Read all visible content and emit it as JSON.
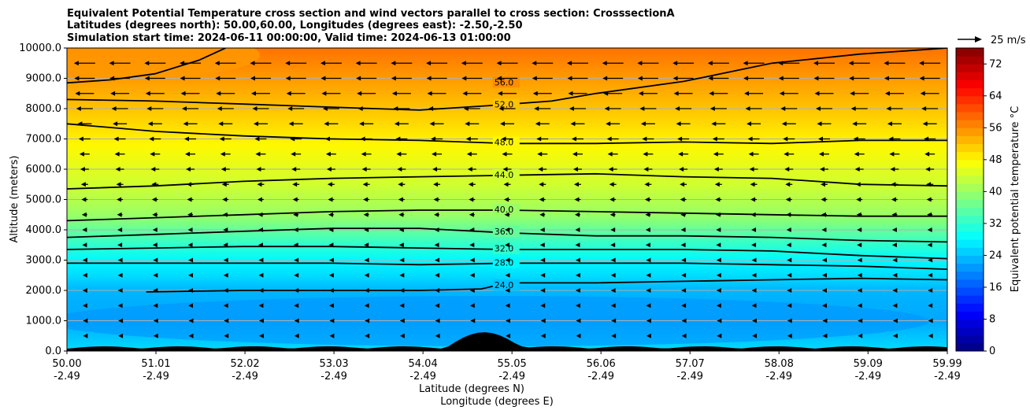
{
  "chart_data": {
    "type": "heatmap",
    "title_lines": [
      "Equivalent Potential Temperature cross section and wind vectors parallel to cross section: CrosssectionA",
      "Latitudes (degrees north): 50.00,60.00, Longitudes (degrees east): -2.50,-2.50",
      "Simulation start time: 2024-06-11 00:00:00, Valid time: 2024-06-13 01:00:00"
    ],
    "xlabel_line1": "Latitude (degrees N)",
    "xlabel_line2": "Longitude (degrees E)",
    "ylabel": "Altitude (meters)",
    "x_tick_labels_lat": [
      "50.00",
      "51.01",
      "52.02",
      "53.03",
      "54.04",
      "55.05",
      "56.06",
      "57.07",
      "58.08",
      "59.09",
      "59.99"
    ],
    "x_tick_labels_lon": [
      "-2.49",
      "-2.49",
      "-2.49",
      "-2.49",
      "-2.49",
      "-2.49",
      "-2.49",
      "-2.49",
      "-2.49",
      "-2.49",
      "-2.49"
    ],
    "y_ticks": [
      0,
      1000,
      2000,
      3000,
      4000,
      5000,
      6000,
      7000,
      8000,
      9000,
      10000
    ],
    "y_tick_labels": [
      "0.0",
      "1000.0",
      "2000.0",
      "3000.0",
      "4000.0",
      "5000.0",
      "6000.0",
      "7000.0",
      "8000.0",
      "9000.0",
      "10000.0"
    ],
    "x_range": [
      50.0,
      59.99
    ],
    "y_range": [
      0,
      10000
    ],
    "grid": true,
    "colorbar": {
      "label": "Equivalent potential temperature °C",
      "range": [
        0,
        76
      ],
      "ticks": [
        0,
        8,
        16,
        24,
        32,
        40,
        48,
        56,
        64,
        72
      ],
      "tick_labels": [
        "0",
        "8",
        "16",
        "24",
        "32",
        "40",
        "48",
        "56",
        "64",
        "72"
      ]
    },
    "theta_e_profile": [
      {
        "altitude": 0,
        "value": 26
      },
      {
        "altitude": 1000,
        "value": 22
      },
      {
        "altitude": 2000,
        "value": 23
      },
      {
        "altitude": 2500,
        "value": 26
      },
      {
        "altitude": 3000,
        "value": 28
      },
      {
        "altitude": 3500,
        "value": 32
      },
      {
        "altitude": 4000,
        "value": 36
      },
      {
        "altitude": 4500,
        "value": 40
      },
      {
        "altitude": 5500,
        "value": 44
      },
      {
        "altitude": 6800,
        "value": 48
      },
      {
        "altitude": 8000,
        "value": 52
      },
      {
        "altitude": 9000,
        "value": 55
      },
      {
        "altitude": 10000,
        "value": 58
      }
    ],
    "contours": [
      {
        "label": "56.0",
        "level": 56,
        "points": [
          [
            50.0,
            8850
          ],
          [
            50.5,
            8950
          ],
          [
            51.0,
            9150
          ],
          [
            51.5,
            9600
          ],
          [
            51.8,
            10000
          ]
        ]
      },
      {
        "label": "52.0",
        "level": 52,
        "points": [
          [
            50.0,
            8300
          ],
          [
            51.0,
            8250
          ],
          [
            52.0,
            8150
          ],
          [
            53.0,
            8050
          ],
          [
            54.0,
            7950
          ],
          [
            54.8,
            8100
          ],
          [
            55.5,
            8250
          ],
          [
            56.0,
            8500
          ],
          [
            57.0,
            8900
          ],
          [
            58.0,
            9500
          ],
          [
            59.0,
            9800
          ],
          [
            59.99,
            10000
          ]
        ]
      },
      {
        "label": "48.0",
        "level": 48,
        "points": [
          [
            50.0,
            7500
          ],
          [
            51.0,
            7250
          ],
          [
            52.0,
            7100
          ],
          [
            53.0,
            7000
          ],
          [
            54.0,
            6950
          ],
          [
            55.0,
            6850
          ],
          [
            56.0,
            6850
          ],
          [
            57.0,
            6900
          ],
          [
            58.0,
            6850
          ],
          [
            59.0,
            6950
          ],
          [
            59.99,
            6950
          ]
        ]
      },
      {
        "label": "44.0",
        "level": 44,
        "points": [
          [
            50.0,
            5350
          ],
          [
            51.0,
            5450
          ],
          [
            52.0,
            5600
          ],
          [
            53.0,
            5700
          ],
          [
            54.0,
            5750
          ],
          [
            55.0,
            5800
          ],
          [
            56.0,
            5850
          ],
          [
            57.0,
            5750
          ],
          [
            58.0,
            5700
          ],
          [
            59.0,
            5500
          ],
          [
            59.99,
            5450
          ]
        ]
      },
      {
        "label": "40.0",
        "level": 40,
        "points": [
          [
            50.0,
            4300
          ],
          [
            51.0,
            4400
          ],
          [
            52.0,
            4500
          ],
          [
            53.0,
            4600
          ],
          [
            54.0,
            4650
          ],
          [
            55.0,
            4650
          ],
          [
            56.0,
            4600
          ],
          [
            57.0,
            4550
          ],
          [
            58.0,
            4500
          ],
          [
            59.0,
            4450
          ],
          [
            59.99,
            4450
          ]
        ]
      },
      {
        "label": "36.0",
        "level": 36,
        "points": [
          [
            50.0,
            3750
          ],
          [
            51.0,
            3850
          ],
          [
            52.0,
            3950
          ],
          [
            53.0,
            4050
          ],
          [
            54.0,
            4050
          ],
          [
            55.0,
            3900
          ],
          [
            56.0,
            3800
          ],
          [
            57.0,
            3800
          ],
          [
            58.0,
            3750
          ],
          [
            59.0,
            3650
          ],
          [
            59.99,
            3600
          ]
        ]
      },
      {
        "label": "32.0",
        "level": 32,
        "points": [
          [
            50.0,
            3350
          ],
          [
            51.0,
            3400
          ],
          [
            52.0,
            3450
          ],
          [
            53.0,
            3450
          ],
          [
            54.0,
            3400
          ],
          [
            55.0,
            3350
          ],
          [
            56.0,
            3350
          ],
          [
            57.0,
            3350
          ],
          [
            58.0,
            3300
          ],
          [
            59.0,
            3150
          ],
          [
            59.99,
            3050
          ]
        ]
      },
      {
        "label": "28.0",
        "level": 28,
        "points": [
          [
            50.0,
            2900
          ],
          [
            51.0,
            2900
          ],
          [
            52.0,
            2900
          ],
          [
            53.0,
            2900
          ],
          [
            54.0,
            2850
          ],
          [
            55.0,
            2900
          ],
          [
            56.0,
            2900
          ],
          [
            57.0,
            2900
          ],
          [
            58.0,
            2850
          ],
          [
            59.0,
            2800
          ],
          [
            59.99,
            2700
          ]
        ]
      },
      {
        "label": "24.0",
        "level": 24,
        "points": [
          [
            50.9,
            1950
          ],
          [
            52.0,
            2000
          ],
          [
            53.0,
            2000
          ],
          [
            54.0,
            2000
          ],
          [
            54.7,
            2050
          ],
          [
            55.0,
            2250
          ],
          [
            56.0,
            2250
          ],
          [
            57.0,
            2300
          ],
          [
            58.0,
            2350
          ],
          [
            59.0,
            2400
          ],
          [
            59.99,
            2350
          ]
        ]
      }
    ],
    "wind_vectors": {
      "direction": "westward",
      "reference_label": "25 m/s",
      "reference_speed": 25,
      "rows": [
        {
          "altitude": 9500,
          "speed": 27
        },
        {
          "altitude": 9000,
          "speed": 26
        },
        {
          "altitude": 8500,
          "speed": 24
        },
        {
          "altitude": 8000,
          "speed": 21
        },
        {
          "altitude": 7500,
          "speed": 18
        },
        {
          "altitude": 7000,
          "speed": 15
        },
        {
          "altitude": 6500,
          "speed": 13
        },
        {
          "altitude": 6000,
          "speed": 11
        },
        {
          "altitude": 5500,
          "speed": 9
        },
        {
          "altitude": 5000,
          "speed": 8
        },
        {
          "altitude": 4500,
          "speed": 7
        },
        {
          "altitude": 4000,
          "speed": 6
        },
        {
          "altitude": 3500,
          "speed": 6
        },
        {
          "altitude": 3000,
          "speed": 5
        },
        {
          "altitude": 2500,
          "speed": 5
        },
        {
          "altitude": 2000,
          "speed": 5
        },
        {
          "altitude": 1500,
          "speed": 5
        },
        {
          "altitude": 1000,
          "speed": 4
        },
        {
          "altitude": 500,
          "speed": 4
        }
      ],
      "columns": 25
    }
  }
}
